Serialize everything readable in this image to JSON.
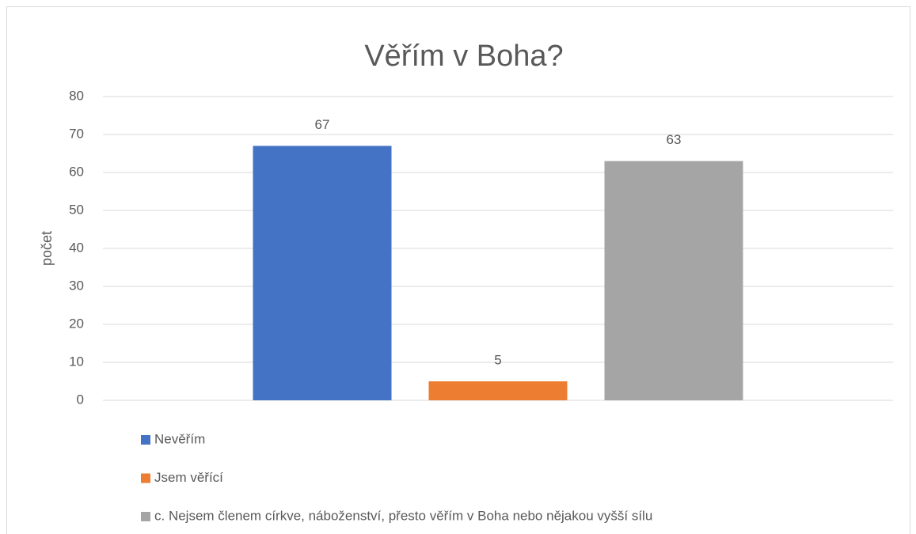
{
  "chart_data": {
    "type": "bar",
    "title": "Věřím v Boha?",
    "ylabel": "počet",
    "categories": [
      null
    ],
    "series": [
      {
        "name": "Nevěřím",
        "color": "#4472c4",
        "values": [
          67
        ]
      },
      {
        "name": "Jsem věřící",
        "color": "#ed7d31",
        "values": [
          5
        ]
      },
      {
        "name": "c. Nejsem členem církve, náboženství, přesto věřím v Boha nebo nějakou vyšší sílu",
        "color": "#a5a5a5",
        "values": [
          63
        ]
      }
    ],
    "ylim": [
      0,
      80
    ],
    "yticks": [
      0,
      10,
      20,
      30,
      40,
      50,
      60,
      70,
      80
    ],
    "grid": true,
    "legend": "bottom"
  }
}
